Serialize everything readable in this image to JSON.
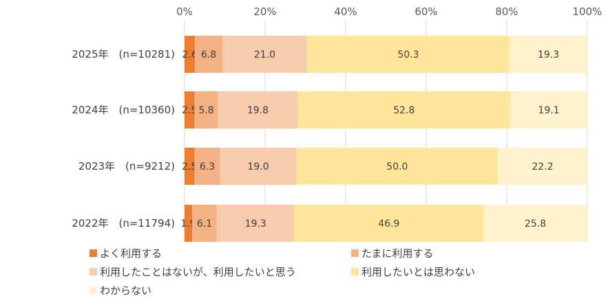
{
  "chart_data": {
    "type": "bar",
    "orientation": "horizontal",
    "stacked": true,
    "xlim": [
      0,
      100
    ],
    "xticks": [
      "0%",
      "20%",
      "40%",
      "60%",
      "80%",
      "100%"
    ],
    "categories": [
      "2025年　(n=10281)",
      "2024年　(n=10360)",
      "2023年　(n=9212)",
      "2022年　(n=11794)"
    ],
    "series": [
      {
        "name": "よく利用する",
        "color": "#ed7d31",
        "values": [
          2.6,
          2.5,
          2.5,
          1.9
        ]
      },
      {
        "name": "たまに利用する",
        "color": "#f4b183",
        "values": [
          6.8,
          5.8,
          6.3,
          6.1
        ]
      },
      {
        "name": "利用したことはないが、利用したいと思う",
        "color": "#f8cbad",
        "values": [
          21.0,
          19.8,
          19.0,
          19.3
        ]
      },
      {
        "name": "利用したいとは思わない",
        "color": "#ffe699",
        "values": [
          50.3,
          52.8,
          50.0,
          46.9
        ]
      },
      {
        "name": "わからない",
        "color": "#fff2cc",
        "values": [
          19.3,
          19.1,
          22.2,
          25.8
        ]
      }
    ],
    "grid": true,
    "legend_position": "bottom"
  }
}
